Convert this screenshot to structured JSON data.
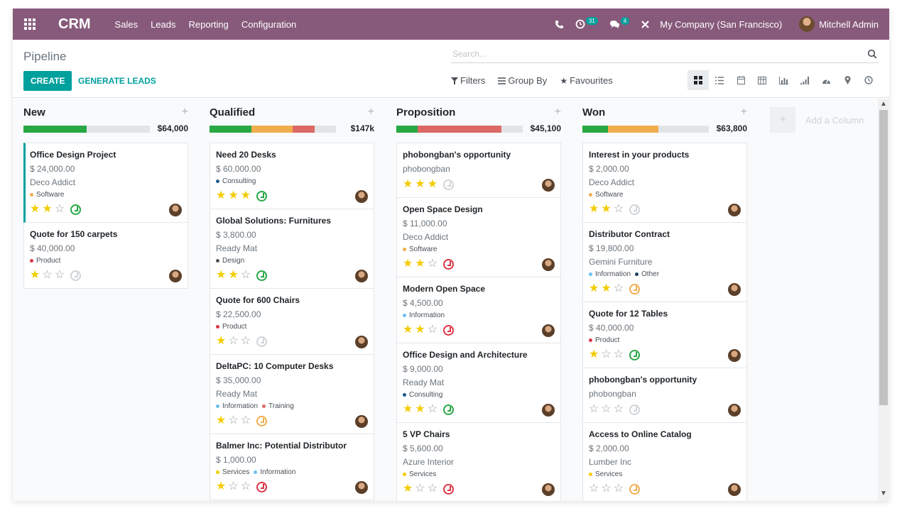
{
  "navbar": {
    "app": "CRM",
    "menu": [
      "Sales",
      "Leads",
      "Reporting",
      "Configuration"
    ],
    "activity_count": "31",
    "message_count": "4",
    "company": "My Company (San Francisco)",
    "user": "Mitchell Admin",
    "icons": [
      "apps-icon",
      "phone-icon",
      "activity-icon",
      "chat-icon",
      "debug-icon"
    ]
  },
  "control": {
    "title": "Pipeline",
    "create": "CREATE",
    "generate": "GENERATE LEADS",
    "search_placeholder": "Search...",
    "filters": "Filters",
    "group_by": "Group By",
    "favourites": "Favourites",
    "views": [
      "kanban",
      "list",
      "calendar",
      "pivot",
      "graph",
      "cohort",
      "dashboard",
      "map",
      "activity"
    ]
  },
  "colors": {
    "brand": "#875a7b",
    "accent": "#00a09d",
    "progress_green": "#28a745",
    "progress_orange": "#f0ad4e",
    "progress_red": "#dc6965",
    "star": "#f3cc00"
  },
  "columns": [
    {
      "title": "New",
      "total": "$64,000",
      "progress": [
        {
          "color": "green",
          "pct": 0.5
        }
      ],
      "cards": [
        {
          "title": "Office Design Project",
          "amount": "$ 24,000.00",
          "customer": "Deco Addict",
          "tags": [
            {
              "label": "Software",
              "color": "#f0ad4e"
            }
          ],
          "stars": 2,
          "activity": "green",
          "accent": true
        },
        {
          "title": "Quote for 150 carpets",
          "amount": "$ 40,000.00",
          "customer": "",
          "tags": [
            {
              "label": "Product",
              "color": "#dc3545"
            }
          ],
          "stars": 1,
          "activity": "grey",
          "accent": false
        }
      ]
    },
    {
      "title": "Qualified",
      "total": "$147k",
      "progress": [
        {
          "color": "green",
          "pct": 0.33
        },
        {
          "color": "orange",
          "pct": 0.33
        },
        {
          "color": "red",
          "pct": 0.17
        }
      ],
      "cards": [
        {
          "title": "Need 20 Desks",
          "amount": "$ 60,000.00",
          "customer": "",
          "tags": [
            {
              "label": "Consulting",
              "color": "#1e5a8a"
            }
          ],
          "stars": 3,
          "activity": "green"
        },
        {
          "title": "Global Solutions: Furnitures",
          "amount": "$ 3,800.00",
          "customer": "Ready Mat",
          "tags": [
            {
              "label": "Design",
              "color": "#555555"
            }
          ],
          "stars": 2,
          "activity": "green"
        },
        {
          "title": "Quote for 600 Chairs",
          "amount": "$ 22,500.00",
          "customer": "",
          "tags": [
            {
              "label": "Product",
              "color": "#dc3545"
            }
          ],
          "stars": 1,
          "activity": "grey"
        },
        {
          "title": "DeltaPC: 10 Computer Desks",
          "amount": "$ 35,000.00",
          "customer": "Ready Mat",
          "tags": [
            {
              "label": "Information",
              "color": "#6cc1ed"
            },
            {
              "label": "Training",
              "color": "#dc6965"
            }
          ],
          "stars": 1,
          "activity": "orange"
        },
        {
          "title": "Balmer Inc: Potential Distributor",
          "amount": "$ 1,000.00",
          "customer": "",
          "tags": [
            {
              "label": "Services",
              "color": "#f3cc00"
            },
            {
              "label": "Information",
              "color": "#6cc1ed"
            }
          ],
          "stars": 1,
          "activity": "red"
        }
      ]
    },
    {
      "title": "Proposition",
      "total": "$45,100",
      "progress": [
        {
          "color": "green",
          "pct": 0.17
        },
        {
          "color": "red",
          "pct": 0.66
        }
      ],
      "cards": [
        {
          "title": "phobongban's opportunity",
          "amount": "",
          "customer": "phobongban",
          "tags": [],
          "stars": 3,
          "activity": "grey"
        },
        {
          "title": "Open Space Design",
          "amount": "$ 11,000.00",
          "customer": "Deco Addict",
          "tags": [
            {
              "label": "Software",
              "color": "#f0ad4e"
            }
          ],
          "stars": 2,
          "activity": "red"
        },
        {
          "title": "Modern Open Space",
          "amount": "$ 4,500.00",
          "customer": "",
          "tags": [
            {
              "label": "Information",
              "color": "#6cc1ed"
            }
          ],
          "stars": 2,
          "activity": "red"
        },
        {
          "title": "Office Design and Architecture",
          "amount": "$ 9,000.00",
          "customer": "Ready Mat",
          "tags": [
            {
              "label": "Consulting",
              "color": "#1e5a8a"
            }
          ],
          "stars": 2,
          "activity": "green"
        },
        {
          "title": "5 VP Chairs",
          "amount": "$ 5,600.00",
          "customer": "Azure Interior",
          "tags": [
            {
              "label": "Services",
              "color": "#f3cc00"
            }
          ],
          "stars": 1,
          "activity": "red"
        }
      ]
    },
    {
      "title": "Won",
      "total": "$63,800",
      "progress": [
        {
          "color": "green",
          "pct": 0.2
        },
        {
          "color": "orange",
          "pct": 0.4
        }
      ],
      "cards": [
        {
          "title": "Interest in your products",
          "amount": "$ 2,000.00",
          "customer": "Deco Addict",
          "tags": [
            {
              "label": "Software",
              "color": "#f0ad4e"
            }
          ],
          "stars": 2,
          "activity": "grey"
        },
        {
          "title": "Distributor Contract",
          "amount": "$ 19,800.00",
          "customer": "Gemini Furniture",
          "tags": [
            {
              "label": "Information",
              "color": "#6cc1ed"
            },
            {
              "label": "Other",
              "color": "#1e4060"
            }
          ],
          "stars": 2,
          "activity": "orange"
        },
        {
          "title": "Quote for 12 Tables",
          "amount": "$ 40,000.00",
          "customer": "",
          "tags": [
            {
              "label": "Product",
              "color": "#dc3545"
            }
          ],
          "stars": 1,
          "activity": "green"
        },
        {
          "title": "phobongban's opportunity",
          "amount": "",
          "customer": "phobongban",
          "tags": [],
          "stars": 0,
          "activity": "grey"
        },
        {
          "title": "Access to Online Catalog",
          "amount": "$ 2,000.00",
          "customer": "Lumber Inc",
          "tags": [
            {
              "label": "Services",
              "color": "#f3cc00"
            }
          ],
          "stars": 0,
          "activity": "orange"
        }
      ]
    }
  ],
  "add_column": "Add a Column"
}
